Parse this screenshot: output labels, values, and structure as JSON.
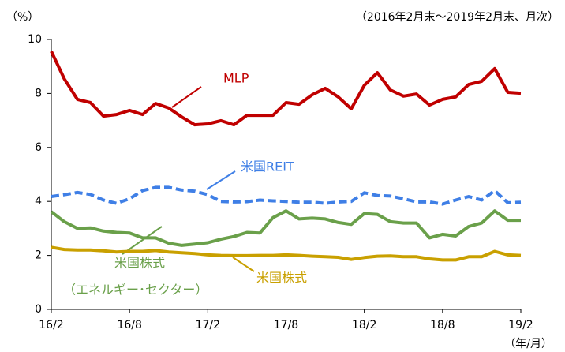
{
  "chart_data": {
    "type": "line",
    "y_unit_label": "（%）",
    "subtitle": "（2016年2月末～2019年2月末、月次）",
    "x_unit_label": "（年/月）",
    "categories": [
      "16/2",
      null,
      null,
      null,
      null,
      null,
      "16/8",
      null,
      null,
      null,
      null,
      null,
      "17/2",
      null,
      null,
      null,
      null,
      null,
      "17/8",
      null,
      null,
      null,
      null,
      null,
      "18/2",
      null,
      null,
      null,
      null,
      null,
      "18/8",
      null,
      null,
      null,
      null,
      null,
      "19/2"
    ],
    "ylim": [
      0,
      10
    ],
    "yticks": [
      0,
      2,
      4,
      6,
      8,
      10
    ],
    "grid": false,
    "series": [
      {
        "name": "MLP",
        "color": "#c00000",
        "dash": false,
        "values": [
          9.56,
          8.54,
          7.78,
          7.66,
          7.16,
          7.22,
          7.37,
          7.22,
          7.63,
          7.46,
          7.13,
          6.84,
          6.87,
          6.99,
          6.84,
          7.19,
          7.19,
          7.19,
          7.66,
          7.6,
          7.95,
          8.19,
          7.87,
          7.43,
          8.3,
          8.77,
          8.13,
          7.9,
          7.98,
          7.57,
          7.78,
          7.87,
          8.33,
          8.45,
          8.92,
          8.04,
          8.01
        ]
      },
      {
        "name": "米国REIT",
        "color": "#3f7fe6",
        "dash": true,
        "values": [
          4.18,
          4.25,
          4.33,
          4.26,
          4.05,
          3.93,
          4.1,
          4.4,
          4.52,
          4.52,
          4.42,
          4.38,
          4.25,
          4.0,
          3.98,
          3.99,
          4.05,
          4.02,
          4.0,
          3.97,
          3.97,
          3.93,
          3.98,
          4.0,
          4.32,
          4.22,
          4.2,
          4.1,
          3.98,
          3.98,
          3.9,
          4.05,
          4.18,
          4.05,
          4.4,
          3.95,
          3.97
        ]
      },
      {
        "name": "米国株式",
        "subname": "（エネルギー･セクター）",
        "color": "#6aa04a",
        "dash": false,
        "values": [
          3.62,
          3.25,
          3.0,
          3.02,
          2.9,
          2.85,
          2.83,
          2.65,
          2.65,
          2.45,
          2.37,
          2.42,
          2.47,
          2.6,
          2.7,
          2.85,
          2.83,
          3.4,
          3.65,
          3.35,
          3.38,
          3.35,
          3.22,
          3.15,
          3.55,
          3.52,
          3.25,
          3.2,
          3.2,
          2.65,
          2.78,
          2.72,
          3.07,
          3.2,
          3.65,
          3.3,
          3.3
        ]
      },
      {
        "name": "米国株式",
        "color": "#c9a000",
        "dash": false,
        "values": [
          2.3,
          2.22,
          2.2,
          2.2,
          2.17,
          2.13,
          2.15,
          2.15,
          2.18,
          2.13,
          2.1,
          2.07,
          2.02,
          2.0,
          1.99,
          1.99,
          2.0,
          2.0,
          2.02,
          2.0,
          1.97,
          1.95,
          1.93,
          1.85,
          1.92,
          1.97,
          1.98,
          1.95,
          1.95,
          1.87,
          1.83,
          1.83,
          1.95,
          1.95,
          2.15,
          2.02,
          2.0
        ]
      }
    ]
  }
}
